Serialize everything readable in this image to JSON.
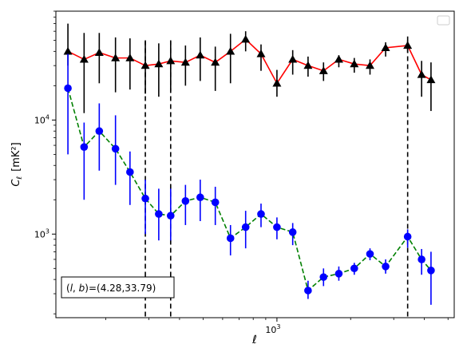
{
  "chart_data": {
    "type": "line",
    "title": "",
    "xlabel": "ℓ",
    "ylabel_main": "C",
    "ylabel_sub": "ℓ",
    "ylabel_unit": "[mK²]",
    "xscale": "log",
    "yscale": "log",
    "xlim": [
      125,
      5300
    ],
    "ylim": [
      185,
      90000
    ],
    "x_ticks": [
      {
        "value": 1000,
        "base": "10",
        "exp": "3"
      }
    ],
    "y_ticks": [
      {
        "value": 1000,
        "base": "10",
        "exp": "3"
      },
      {
        "value": 10000,
        "base": "10",
        "exp": "4"
      }
    ],
    "annotation": "(l, b)=(4.28,33.79)",
    "annotation_parts": {
      "l": "l",
      "b": "b",
      "rest": "=(4.28,33.79)"
    },
    "legend": {
      "position": "upper right",
      "entries": []
    },
    "vlines": [
      290,
      368,
      3420
    ],
    "series": [
      {
        "marker": "triangle",
        "marker_color": "#000000",
        "line_color": "#ff0000",
        "error_color": "#000000",
        "line_style": "solid",
        "x": [
          140,
          163,
          188,
          219,
          251,
          290,
          329,
          368,
          423,
          486,
          560,
          646,
          745,
          861,
          1000,
          1160,
          1340,
          1550,
          1790,
          2070,
          2400,
          2780,
          3420,
          3900,
          4260
        ],
        "y": [
          40000,
          34000,
          39000,
          35000,
          35000,
          30000,
          31000,
          33000,
          32000,
          37000,
          32000,
          40000,
          51000,
          38000,
          21000,
          34000,
          30000,
          27000,
          34000,
          31000,
          30000,
          43000,
          45000,
          25000,
          22500
        ],
        "err_low": [
          30000,
          11500,
          21000,
          17500,
          18500,
          17000,
          16000,
          18000,
          20000,
          22000,
          18000,
          21000,
          40000,
          27000,
          16000,
          25000,
          24000,
          22000,
          29000,
          26000,
          25000,
          36000,
          39000,
          16000,
          12000
        ],
        "err_high": [
          70000,
          58000,
          58000,
          53000,
          52000,
          49000,
          47000,
          49000,
          45000,
          53000,
          44000,
          57000,
          60000,
          46000,
          27500,
          41000,
          36000,
          32000,
          37000,
          35000,
          34000,
          48000,
          54000,
          33000,
          32000
        ]
      },
      {
        "marker": "circle",
        "marker_color": "#0000ff",
        "line_color": "#008000",
        "error_color": "#0000ff",
        "line_style": "dashed",
        "x": [
          140,
          163,
          188,
          219,
          251,
          290,
          329,
          368,
          423,
          486,
          560,
          646,
          745,
          861,
          1000,
          1160,
          1340,
          1550,
          1790,
          2070,
          2400,
          2780,
          3420,
          3900,
          4260
        ],
        "y": [
          19000,
          5800,
          8000,
          5600,
          3500,
          2050,
          1500,
          1450,
          1950,
          2100,
          1900,
          920,
          1150,
          1500,
          1150,
          1040,
          320,
          420,
          450,
          500,
          670,
          520,
          950,
          600,
          480
        ],
        "err_low": [
          5000,
          2000,
          3600,
          2700,
          1800,
          1000,
          880,
          880,
          1200,
          1300,
          1200,
          650,
          750,
          1150,
          900,
          800,
          270,
          350,
          390,
          440,
          590,
          450,
          760,
          440,
          240
        ],
        "err_high": [
          38000,
          9500,
          14000,
          11000,
          5300,
          3000,
          2500,
          2500,
          2700,
          3000,
          2600,
          1200,
          1600,
          1850,
          1400,
          1250,
          390,
          500,
          520,
          560,
          750,
          600,
          1100,
          740,
          700
        ]
      }
    ]
  }
}
